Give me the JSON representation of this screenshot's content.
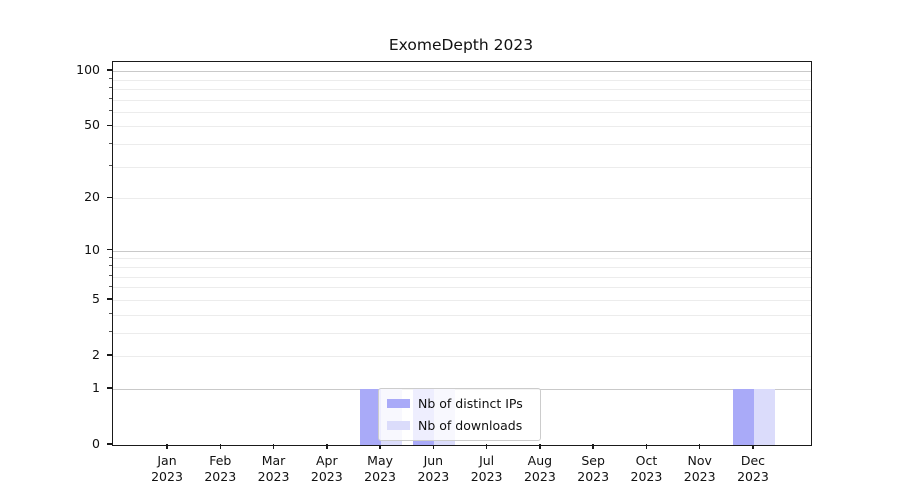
{
  "title": "ExomeDepth 2023",
  "legend": {
    "items": [
      {
        "label": "Nb of distinct IPs",
        "color": "#a9aaf8"
      },
      {
        "label": "Nb of downloads",
        "color": "#dbdcfb"
      }
    ]
  },
  "chart_data": {
    "type": "bar",
    "title": "ExomeDepth 2023",
    "categories": [
      "Jan 2023",
      "Feb 2023",
      "Mar 2023",
      "Apr 2023",
      "May 2023",
      "Jun 2023",
      "Jul 2023",
      "Aug 2023",
      "Sep 2023",
      "Oct 2023",
      "Nov 2023",
      "Dec 2023"
    ],
    "series": [
      {
        "name": "Nb of distinct IPs",
        "color": "#a9aaf8",
        "values": [
          0,
          0,
          0,
          0,
          1,
          1,
          0,
          0,
          0,
          0,
          0,
          1
        ]
      },
      {
        "name": "Nb of downloads",
        "color": "#dbdcfb",
        "values": [
          0,
          0,
          0,
          0,
          1,
          1,
          0,
          0,
          0,
          0,
          0,
          1
        ]
      }
    ],
    "xlabel": "",
    "ylabel": "",
    "y_scale": "log1p",
    "ylim": [
      0,
      112
    ],
    "y_ticks": [
      0,
      1,
      2,
      5,
      10,
      20,
      50,
      100
    ],
    "y_minor_ticks": [
      3,
      4,
      6,
      7,
      8,
      9,
      30,
      40,
      60,
      70,
      80,
      90
    ],
    "y_major_grid_ticks": [
      1,
      10,
      100
    ],
    "grid": "on",
    "legend_position": "lower center"
  }
}
